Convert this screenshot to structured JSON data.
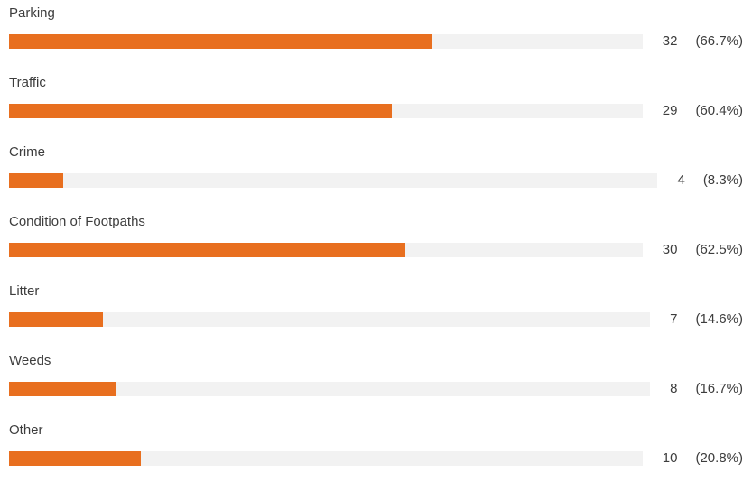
{
  "colors": {
    "bar_fill": "#e86f1f",
    "bar_track": "#f2f2f2",
    "text": "#3d3d3d"
  },
  "chart_data": {
    "type": "bar",
    "orientation": "horizontal",
    "categories": [
      "Parking",
      "Traffic",
      "Crime",
      "Condition of Footpaths",
      "Litter",
      "Weeds",
      "Other"
    ],
    "values": [
      32,
      29,
      4,
      30,
      7,
      8,
      10
    ],
    "percent_labels": [
      "(66.7%)",
      "(60.4%)",
      "(8.3%)",
      "(62.5%)",
      "(14.6%)",
      "(16.7%)",
      "(20.8%)"
    ],
    "percent_values": [
      66.7,
      60.4,
      8.3,
      62.5,
      14.6,
      16.7,
      20.8
    ],
    "xlim": [
      0,
      100
    ],
    "grid": false,
    "legend": "none"
  }
}
